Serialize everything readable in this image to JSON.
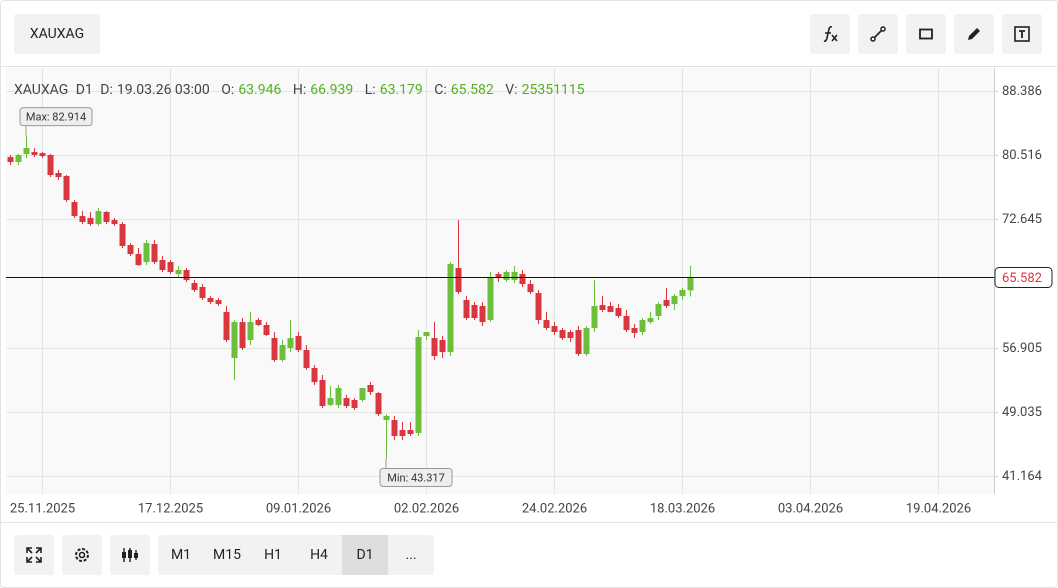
{
  "toolbar": {
    "symbol": "XAUXAG"
  },
  "chart_data": {
    "type": "candlestick",
    "timeframe": "D1",
    "info_labels": {
      "date": "D:",
      "open": "O:",
      "high": "H:",
      "low": "L:",
      "close": "C:",
      "volume": "V:"
    },
    "date": "19.03.26 03:00",
    "volume": 25351115,
    "up_color": "#6cbf3a",
    "down_color": "#d9363e",
    "grid": true,
    "ohlc": [
      [
        80.29,
        80.54,
        79.31,
        79.68
      ],
      [
        79.68,
        80.66,
        79.31,
        80.54
      ],
      [
        80.66,
        82.914,
        80.17,
        81.4
      ],
      [
        80.9,
        81.4,
        80.29,
        80.54
      ],
      [
        80.78,
        80.9,
        80.17,
        80.41
      ],
      [
        80.54,
        80.66,
        77.84,
        78.08
      ],
      [
        78.33,
        78.7,
        77.47,
        77.84
      ],
      [
        77.96,
        78.08,
        74.77,
        75.02
      ],
      [
        74.77,
        75.02,
        72.81,
        73.05
      ],
      [
        73.05,
        73.67,
        72.07,
        72.32
      ],
      [
        72.81,
        73.55,
        71.83,
        72.07
      ],
      [
        72.07,
        74.04,
        71.83,
        73.67
      ],
      [
        73.55,
        73.67,
        72.07,
        72.32
      ],
      [
        72.56,
        72.81,
        71.83,
        72.07
      ],
      [
        72.07,
        72.32,
        69.13,
        69.38
      ],
      [
        69.5,
        69.74,
        68.15,
        68.39
      ],
      [
        68.39,
        69.13,
        66.92,
        67.04
      ],
      [
        67.41,
        70.11,
        67.04,
        69.74
      ],
      [
        69.62,
        70.11,
        67.17,
        67.41
      ],
      [
        67.66,
        68.15,
        66.19,
        66.43
      ],
      [
        67.41,
        67.66,
        65.94,
        66.19
      ],
      [
        65.94,
        66.92,
        65.45,
        66.43
      ],
      [
        66.43,
        66.68,
        64.96,
        65.21
      ],
      [
        64.84,
        65.21,
        63.73,
        63.98
      ],
      [
        64.35,
        64.71,
        62.75,
        63.0
      ],
      [
        63.0,
        63.24,
        62.26,
        62.51
      ],
      [
        62.75,
        63.0,
        62.02,
        62.26
      ],
      [
        61.28,
        62.02,
        57.6,
        57.85
      ],
      [
        55.64,
        60.3,
        52.94,
        60.05
      ],
      [
        60.05,
        60.54,
        56.62,
        56.87
      ],
      [
        57.85,
        61.28,
        57.23,
        60.05
      ],
      [
        60.3,
        60.54,
        59.56,
        59.69
      ],
      [
        59.69,
        60.05,
        58.34,
        58.46
      ],
      [
        58.09,
        58.83,
        55.15,
        55.39
      ],
      [
        55.39,
        57.85,
        55.15,
        57.23
      ],
      [
        56.87,
        60.3,
        56.37,
        58.09
      ],
      [
        58.34,
        58.83,
        56.37,
        56.62
      ],
      [
        56.62,
        57.23,
        54.17,
        54.41
      ],
      [
        54.41,
        54.78,
        52.33,
        52.69
      ],
      [
        52.94,
        53.55,
        49.51,
        49.75
      ],
      [
        49.87,
        52.2,
        49.75,
        50.73
      ],
      [
        49.87,
        52.33,
        49.51,
        51.96
      ],
      [
        50.73,
        51.1,
        49.51,
        49.75
      ],
      [
        50.49,
        50.73,
        49.26,
        49.51
      ],
      [
        50.49,
        51.71,
        50.24,
        51.96
      ],
      [
        52.33,
        52.69,
        51.1,
        51.47
      ],
      [
        51.35,
        51.47,
        48.53,
        48.77
      ],
      [
        48.03,
        48.77,
        43.317,
        48.53
      ],
      [
        48.03,
        48.53,
        45.58,
        46.07
      ],
      [
        46.81,
        47.79,
        45.58,
        46.07
      ],
      [
        46.81,
        47.79,
        46.07,
        46.32
      ],
      [
        46.44,
        59.07,
        46.07,
        58.21
      ],
      [
        58.34,
        58.83,
        57.85,
        58.83
      ],
      [
        58.09,
        60.05,
        55.39,
        55.88
      ],
      [
        57.85,
        58.34,
        55.64,
        56.37
      ],
      [
        56.37,
        67.41,
        55.88,
        67.17
      ],
      [
        66.68,
        72.56,
        63.49,
        63.73
      ],
      [
        62.75,
        63.24,
        60.3,
        60.54
      ],
      [
        62.14,
        62.51,
        60.3,
        60.54
      ],
      [
        62.02,
        62.51,
        59.56,
        60.05
      ],
      [
        60.3,
        66.19,
        60.05,
        65.45
      ],
      [
        65.94,
        66.19,
        64.96,
        65.45
      ],
      [
        65.21,
        66.43,
        64.96,
        66.19
      ],
      [
        65.21,
        66.92,
        64.84,
        66.19
      ],
      [
        65.94,
        66.43,
        64.35,
        64.71
      ],
      [
        64.71,
        65.21,
        63.49,
        63.73
      ],
      [
        63.61,
        63.98,
        59.81,
        60.3
      ],
      [
        60.3,
        61.28,
        59.07,
        59.32
      ],
      [
        59.56,
        60.05,
        58.46,
        58.83
      ],
      [
        59.07,
        59.32,
        57.85,
        58.09
      ],
      [
        58.83,
        59.07,
        57.6,
        58.09
      ],
      [
        59.07,
        59.56,
        55.88,
        56.13
      ],
      [
        56.13,
        59.56,
        55.88,
        59.32
      ],
      [
        59.32,
        65.21,
        58.83,
        62.02
      ],
      [
        62.14,
        63.24,
        61.28,
        61.53
      ],
      [
        62.02,
        62.51,
        61.28,
        61.28
      ],
      [
        61.77,
        62.26,
        60.54,
        60.79
      ],
      [
        60.79,
        61.53,
        58.83,
        59.07
      ],
      [
        59.32,
        59.81,
        58.09,
        58.71
      ],
      [
        58.83,
        60.54,
        58.46,
        60.3
      ],
      [
        60.05,
        61.28,
        59.81,
        60.54
      ],
      [
        60.79,
        62.51,
        60.3,
        62.26
      ],
      [
        62.75,
        64.22,
        61.77,
        62.02
      ],
      [
        62.26,
        63.49,
        61.53,
        63.24
      ],
      [
        63.24,
        64.22,
        62.75,
        63.98
      ],
      [
        63.946,
        66.939,
        63.179,
        65.582
      ]
    ],
    "annotations": {
      "max": {
        "index": 2,
        "label": "Max: 82.914"
      },
      "min": {
        "index": 47,
        "label": "Min: 43.317"
      }
    },
    "xlim": [
      -0.5,
      123
    ],
    "xticks": [
      {
        "value": 4,
        "label": "25.11.2025"
      },
      {
        "value": 20,
        "label": "17.12.2025"
      },
      {
        "value": 36,
        "label": "09.01.2026"
      },
      {
        "value": 52,
        "label": "02.02.2026"
      },
      {
        "value": 68,
        "label": "24.02.2026"
      },
      {
        "value": 84,
        "label": "18.03.2026"
      },
      {
        "value": 100,
        "label": "03.04.2026"
      },
      {
        "value": 116,
        "label": "19.04.2026"
      }
    ],
    "ylim": [
      38.96,
      91.21
    ],
    "yticks": [
      88.386,
      80.516,
      72.645,
      56.905,
      49.035,
      41.164
    ]
  },
  "timeframes": [
    "M1",
    "M15",
    "H1",
    "H4",
    "D1",
    "..."
  ],
  "active_timeframe_index": 4
}
